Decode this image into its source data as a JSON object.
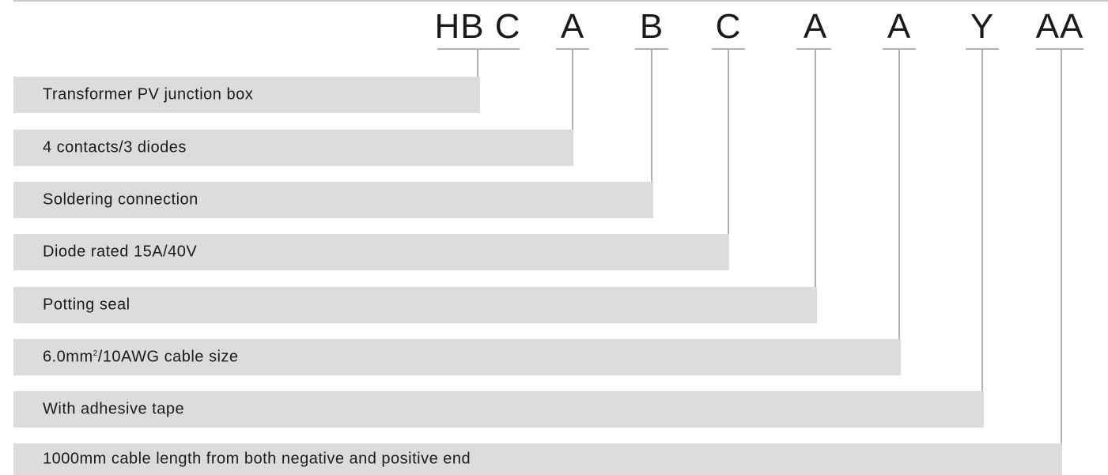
{
  "code": {
    "segments": [
      {
        "letter": "HB C"
      },
      {
        "letter": "A"
      },
      {
        "letter": "B"
      },
      {
        "letter": "C"
      },
      {
        "letter": "A"
      },
      {
        "letter": "A"
      },
      {
        "letter": "Y"
      },
      {
        "letter": "AA"
      }
    ]
  },
  "descriptions": [
    {
      "text": "Transformer PV junction box"
    },
    {
      "text": "4 contacts/3 diodes"
    },
    {
      "text": "Soldering connection"
    },
    {
      "text": "Diode rated 15A/40V"
    },
    {
      "text": "Potting seal"
    },
    {
      "text_before": "6.0mm",
      "sup": "2",
      "text_after": "/10AWG cable size"
    },
    {
      "text": "With adhesive tape"
    },
    {
      "text": "1000mm cable length from both negative and positive end"
    }
  ],
  "colors": {
    "bar": "#dcdcdc",
    "line": "#b0b0b0",
    "text": "#1a1a1a"
  }
}
